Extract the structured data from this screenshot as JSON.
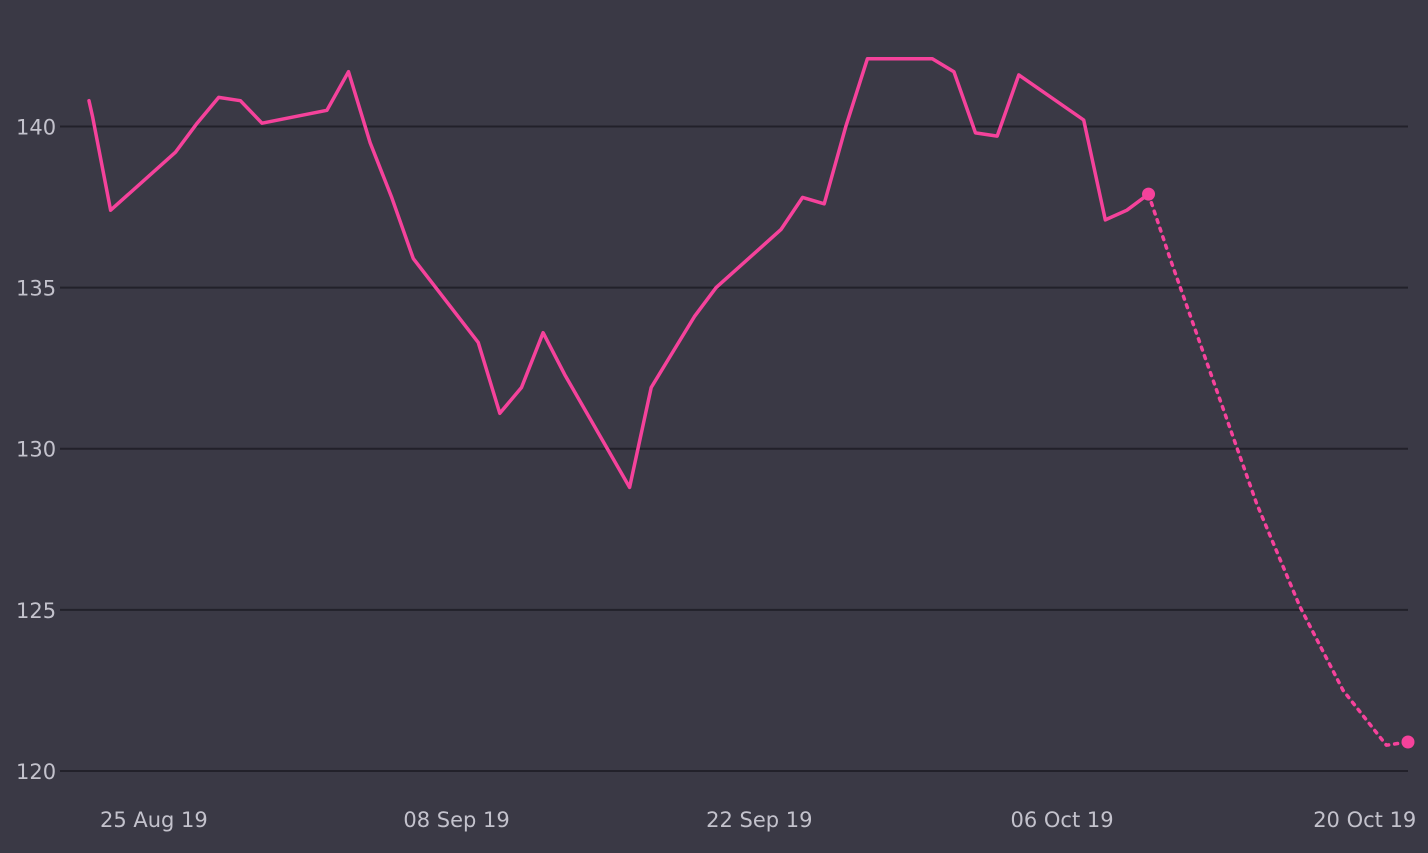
{
  "colors": {
    "background": "#3a3945",
    "gridline": "#22212a",
    "tick_text": "#c3c2cc",
    "series": "#f5429b"
  },
  "chart_data": {
    "type": "line",
    "title": "",
    "xlabel": "",
    "ylabel": "",
    "ylim": [
      120,
      142
    ],
    "xlim": [
      "2019-08-22",
      "2019-10-22"
    ],
    "grid": true,
    "legend": "none",
    "y_ticks": [
      "120",
      "125",
      "130",
      "135",
      "140"
    ],
    "x_ticks": [
      {
        "date": "2019-08-25",
        "label": "25 Aug 19"
      },
      {
        "date": "2019-09-08",
        "label": "08 Sep 19"
      },
      {
        "date": "2019-09-22",
        "label": "22 Sep 19"
      },
      {
        "date": "2019-10-06",
        "label": "06 Oct 19"
      },
      {
        "date": "2019-10-20",
        "label": "20 Oct 19"
      }
    ],
    "series": [
      {
        "style": "solid",
        "points": [
          [
            "2019-08-22 00:00",
            140.8
          ],
          [
            "2019-08-22 04:00",
            140.3
          ],
          [
            "2019-08-23",
            137.4
          ],
          [
            "2019-08-26",
            139.2
          ],
          [
            "2019-08-27",
            140.1
          ],
          [
            "2019-08-28",
            140.9
          ],
          [
            "2019-08-29",
            140.8
          ],
          [
            "2019-08-30",
            140.1
          ],
          [
            "2019-09-02",
            140.5
          ],
          [
            "2019-09-03",
            141.7
          ],
          [
            "2019-09-04",
            139.5
          ],
          [
            "2019-09-05",
            137.8
          ],
          [
            "2019-09-06",
            135.9
          ],
          [
            "2019-09-09",
            133.3
          ],
          [
            "2019-09-10",
            131.1
          ],
          [
            "2019-09-11",
            131.9
          ],
          [
            "2019-09-12",
            133.6
          ],
          [
            "2019-09-13",
            132.3
          ],
          [
            "2019-09-16",
            128.8
          ],
          [
            "2019-09-17",
            131.9
          ],
          [
            "2019-09-18",
            133.0
          ],
          [
            "2019-09-19",
            134.1
          ],
          [
            "2019-09-20",
            135.0
          ],
          [
            "2019-09-23",
            136.8
          ],
          [
            "2019-09-24",
            137.8
          ],
          [
            "2019-09-25",
            137.6
          ],
          [
            "2019-09-26",
            140.0
          ],
          [
            "2019-09-27",
            142.1
          ],
          [
            "2019-09-30",
            142.1
          ],
          [
            "2019-10-01",
            141.7
          ],
          [
            "2019-10-02",
            139.8
          ],
          [
            "2019-10-03",
            139.7
          ],
          [
            "2019-10-04",
            141.6
          ],
          [
            "2019-10-07",
            140.2
          ],
          [
            "2019-10-08",
            137.1
          ],
          [
            "2019-10-09",
            137.4
          ],
          [
            "2019-10-10",
            137.9
          ]
        ]
      },
      {
        "style": "dotted",
        "points": [
          [
            "2019-10-10",
            137.9
          ],
          [
            "2019-10-11",
            135.9
          ],
          [
            "2019-10-13",
            132.1
          ],
          [
            "2019-10-15",
            128.3
          ],
          [
            "2019-10-17",
            125.1
          ],
          [
            "2019-10-19",
            122.5
          ],
          [
            "2019-10-21",
            120.8
          ],
          [
            "2019-10-22",
            120.9
          ]
        ]
      }
    ],
    "markers": [
      {
        "date": "2019-10-10",
        "value": 137.9
      },
      {
        "date": "2019-10-22",
        "value": 120.9
      }
    ]
  }
}
